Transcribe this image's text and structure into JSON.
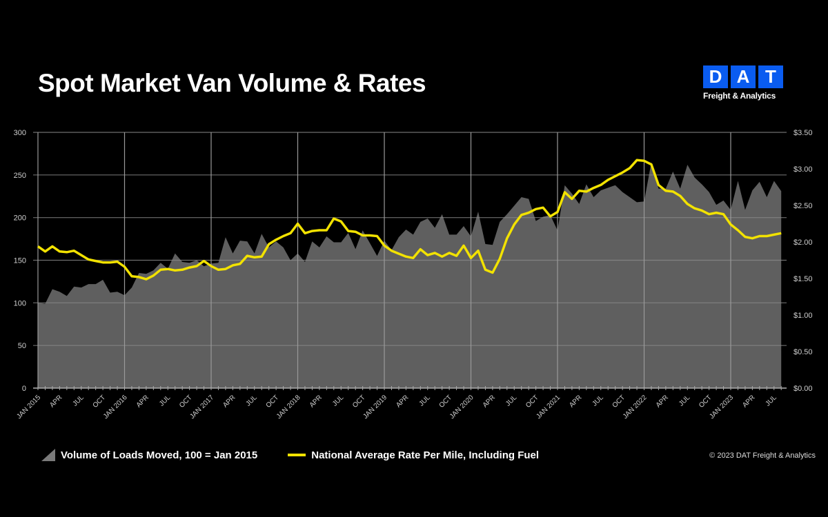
{
  "title": "Spot Market Van Volume & Rates",
  "logo": {
    "letters": [
      "D",
      "A",
      "T"
    ],
    "subtitle": "Freight & Analytics",
    "color": "#0a5cf0"
  },
  "copyright": "© 2023 DAT Freight & Analytics",
  "chart_data": {
    "type": "area+line",
    "title": "Spot Market Van Volume & Rates",
    "x_start": "JAN 2015",
    "x_end": "AUG 2023",
    "x_tick_labels": [
      "JAN 2015",
      "APR",
      "JUL",
      "OCT",
      "JAN 2016",
      "APR",
      "JUL",
      "OCT",
      "JAN 2017",
      "APR",
      "JUL",
      "OCT",
      "JAN 2018",
      "APR",
      "JUL",
      "OCT",
      "JAN 2019",
      "APR",
      "JUL",
      "OCT",
      "JAN 2020",
      "APR",
      "JUL",
      "OCT",
      "JAN 2021",
      "APR",
      "JUL",
      "OCT",
      "JAN 2022",
      "APR",
      "JUL",
      "OCT",
      "JAN 2023",
      "APR",
      "JUL"
    ],
    "y_left": {
      "range": [
        0,
        300
      ],
      "ticks": [
        "0",
        "50",
        "100",
        "150",
        "200",
        "250",
        "300"
      ]
    },
    "y_right": {
      "range": [
        0,
        3.5
      ],
      "ticks": [
        "$0.00",
        "$0.50",
        "$1.00",
        "$1.50",
        "$2.00",
        "$2.50",
        "$3.00",
        "$3.50"
      ]
    },
    "grid": true,
    "legend_position": "bottom",
    "series": [
      {
        "name": "Volume of Loads Moved, 100 = Jan 2015",
        "type": "area",
        "axis": "left",
        "color": "#5f5f5f",
        "values": [
          100,
          99,
          116,
          113,
          108,
          119,
          118,
          122,
          122,
          127,
          112,
          113,
          109,
          118,
          135,
          134,
          138,
          147,
          140,
          158,
          148,
          147,
          150,
          143,
          146,
          147,
          177,
          158,
          173,
          172,
          158,
          181,
          165,
          172,
          165,
          150,
          158,
          148,
          172,
          165,
          178,
          171,
          171,
          182,
          163,
          185,
          170,
          155,
          173,
          162,
          177,
          186,
          180,
          195,
          199,
          188,
          204,
          180,
          180,
          190,
          178,
          207,
          169,
          168,
          195,
          204,
          214,
          224,
          222,
          196,
          201,
          203,
          185,
          238,
          228,
          216,
          239,
          224,
          232,
          235,
          238,
          230,
          224,
          218,
          219,
          265,
          234,
          234,
          254,
          234,
          262,
          247,
          239,
          230,
          215,
          220,
          209,
          243,
          209,
          232,
          242,
          224,
          243,
          231
        ]
      },
      {
        "name": "National Average Rate Per Mile, Including Fuel",
        "type": "line",
        "axis": "right",
        "color": "#f2e200",
        "values": [
          1.94,
          1.87,
          1.94,
          1.87,
          1.86,
          1.88,
          1.82,
          1.76,
          1.74,
          1.72,
          1.72,
          1.73,
          1.66,
          1.53,
          1.52,
          1.49,
          1.54,
          1.62,
          1.63,
          1.61,
          1.62,
          1.65,
          1.67,
          1.74,
          1.67,
          1.62,
          1.63,
          1.68,
          1.7,
          1.81,
          1.79,
          1.8,
          1.97,
          2.03,
          2.08,
          2.12,
          2.25,
          2.12,
          2.15,
          2.16,
          2.16,
          2.32,
          2.28,
          2.15,
          2.14,
          2.09,
          2.09,
          2.08,
          1.95,
          1.88,
          1.84,
          1.8,
          1.78,
          1.9,
          1.82,
          1.85,
          1.8,
          1.85,
          1.81,
          1.95,
          1.78,
          1.88,
          1.62,
          1.58,
          1.77,
          2.05,
          2.24,
          2.37,
          2.4,
          2.45,
          2.47,
          2.35,
          2.41,
          2.68,
          2.59,
          2.7,
          2.69,
          2.74,
          2.78,
          2.85,
          2.9,
          2.95,
          3.01,
          3.12,
          3.11,
          3.06,
          2.78,
          2.7,
          2.69,
          2.63,
          2.52,
          2.46,
          2.43,
          2.38,
          2.4,
          2.38,
          2.24,
          2.16,
          2.07,
          2.05,
          2.08,
          2.08,
          2.1,
          2.12
        ]
      }
    ]
  }
}
